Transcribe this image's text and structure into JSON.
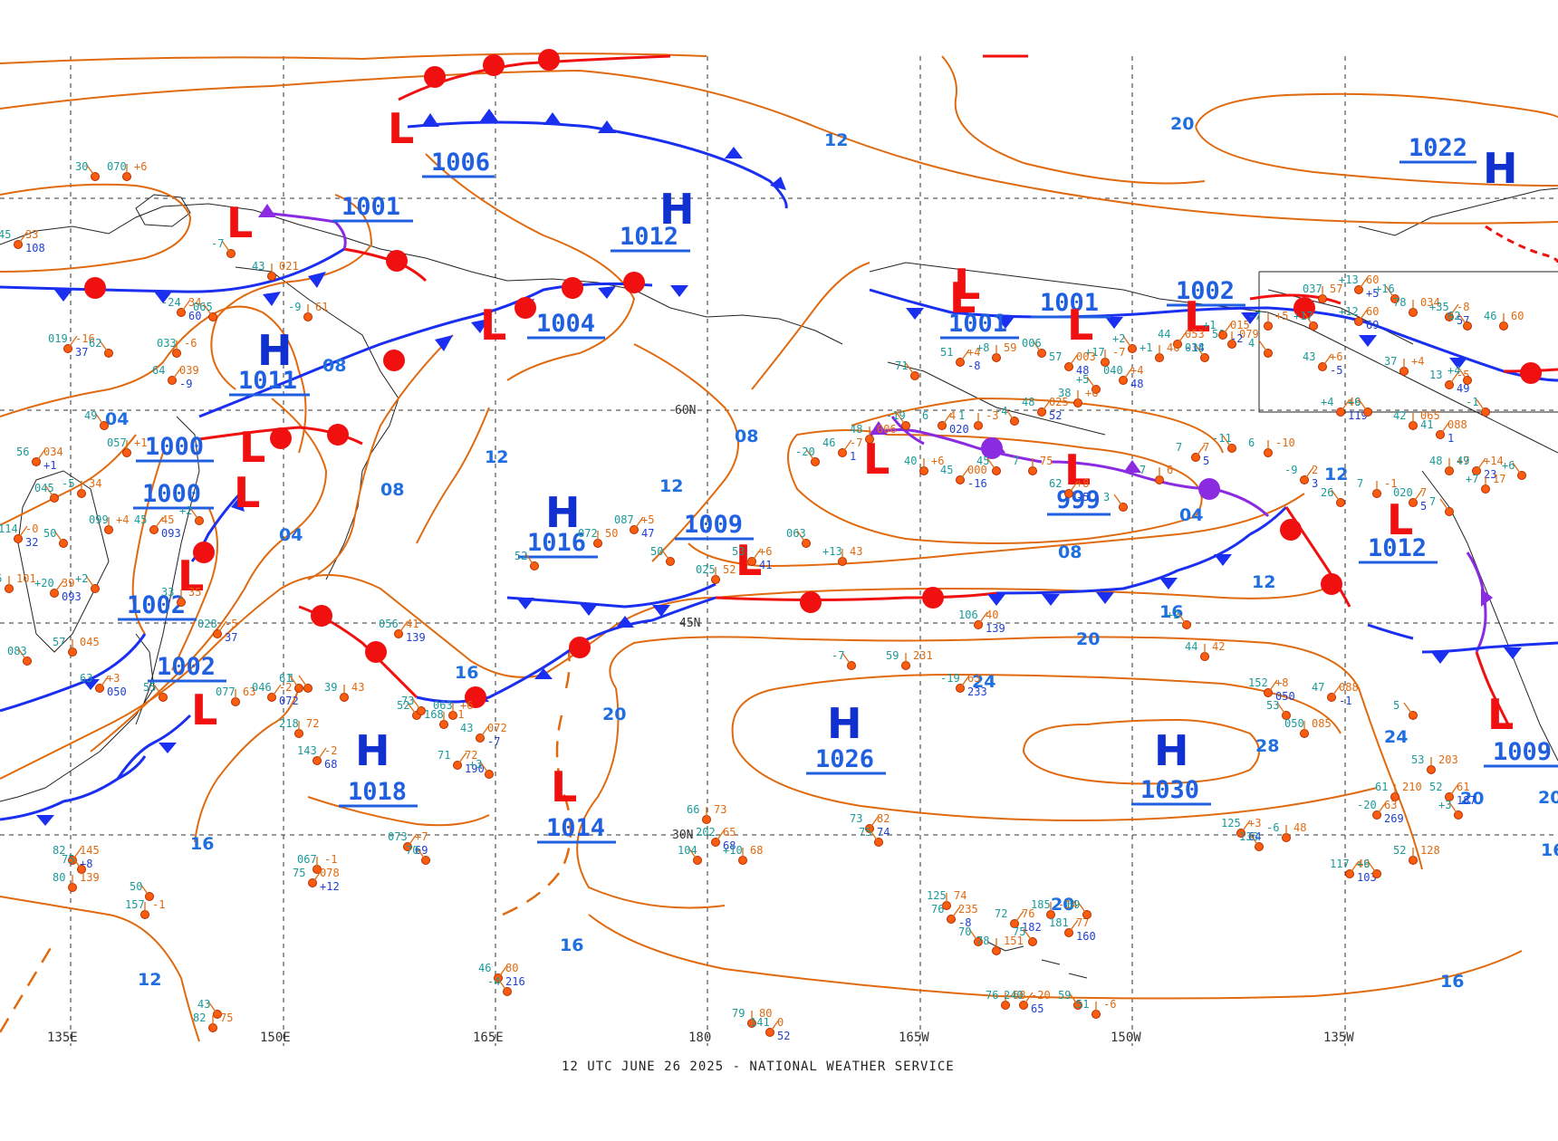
{
  "footer": "12 UTC JUNE 26 2025 - NATIONAL WEATHER SERVICE",
  "longitudes": [
    "135E",
    "150E",
    "165E",
    "180",
    "165W",
    "150W",
    "135W"
  ],
  "latitudes": [
    "60N",
    "45N",
    "30N"
  ],
  "isobar_labels": [
    "12",
    "20",
    "08",
    "04",
    "08",
    "04",
    "12",
    "12",
    "08",
    "04",
    "08",
    "12",
    "12",
    "16",
    "16",
    "20",
    "24",
    "24",
    "28",
    "20",
    "20",
    "20",
    "16",
    "16",
    "16",
    "12",
    "16",
    "20"
  ],
  "pressure_labels": [
    "1006",
    "1001",
    "1012",
    "1022",
    "1004",
    "1001",
    "1001",
    "1002",
    "1011",
    "1000",
    "1000",
    "999",
    "1016",
    "1009",
    "1002",
    "1012",
    "1002",
    "1026",
    "1018",
    "1030",
    "1014",
    "1009"
  ],
  "centers": [
    "L",
    "H",
    "L",
    "L",
    "L",
    "L",
    "L",
    "L",
    "L",
    "L",
    "L",
    "H",
    "H",
    "L",
    "L",
    "L",
    "H",
    "H",
    "H",
    "L",
    "L",
    "L",
    "L",
    "H"
  ],
  "station_values": [
    "30",
    "070",
    "+6",
    "45",
    "33",
    "108",
    "-7",
    "43",
    "021",
    "-24",
    "34",
    "60",
    "065",
    "-9",
    "61",
    "019",
    "-16",
    "37",
    "62",
    "033",
    "-6",
    "64",
    "039",
    "-9",
    "49",
    "057",
    "+1",
    "56",
    "034",
    "+1",
    "045",
    "-5",
    "34",
    "114",
    "-0",
    "32",
    "50",
    "099",
    "+4",
    "45",
    "45",
    "093",
    "+2",
    "35",
    "101",
    "+20",
    "39",
    "093",
    "+2",
    "33",
    "35",
    "028",
    "-5",
    "37",
    "083",
    "57",
    "045",
    "63",
    "+3",
    "050",
    "55",
    "077",
    "63",
    "046",
    "-2",
    "072",
    "1",
    "39",
    "43",
    "056",
    "41",
    "139",
    "52",
    "063",
    "+6",
    "43",
    "072",
    "-7",
    "52",
    "072",
    "50",
    "087",
    "+5",
    "47",
    "50",
    "025",
    "52",
    "53",
    "+6",
    "41",
    "063",
    "+13",
    "43",
    "106",
    "40",
    "139",
    "+2",
    "44",
    "42",
    "152",
    "+8",
    "050",
    "53",
    "050",
    "085",
    "47",
    "088",
    "-1",
    "5",
    "53",
    "203",
    "52",
    "61",
    "187",
    "+3",
    "61",
    "210",
    "-20",
    "63",
    "269",
    "-7",
    "59",
    "231",
    "-19",
    "63",
    "233",
    "61",
    "218",
    "72",
    "143",
    "-2",
    "68",
    "73",
    "168",
    "-1",
    "71",
    "72",
    "190",
    "+3",
    "66",
    "73",
    "202",
    "65",
    "68",
    "104",
    "+10",
    "68",
    "073",
    "+7",
    "69",
    "70",
    "067",
    "-1",
    "75",
    "078",
    "+12",
    "50",
    "157",
    "-1",
    "46",
    "80",
    "216",
    "-4",
    "79",
    "80",
    "141",
    "0",
    "52",
    "43",
    "82",
    "75",
    "82",
    "145",
    "+8",
    "75",
    "80",
    "139",
    "73",
    "82",
    "74",
    "75",
    "125",
    "74",
    "76",
    "235",
    "-8",
    "70",
    "78",
    "151",
    "72",
    "76",
    "182",
    "75",
    "185",
    "-14",
    "181",
    "77",
    "160",
    "69",
    "76",
    "68",
    "240",
    "-20",
    "65",
    "59",
    "51",
    "-6",
    "125",
    "+3",
    "64",
    "133",
    "-6",
    "48",
    "117",
    "49",
    "103",
    "+6",
    "52",
    "128",
    "+4",
    "49",
    "119",
    "+6",
    "42",
    "065",
    "41",
    "088",
    "1",
    "-1",
    "48",
    "+7",
    "49",
    "+14",
    "23",
    "+6",
    "+7",
    "17",
    "13",
    "-5",
    "49",
    "+4",
    "37",
    "+4",
    "43",
    "+6",
    "-5",
    "4",
    "50",
    "079",
    "44",
    "053",
    "-14",
    "+2",
    "+17",
    "-7",
    "57",
    "003",
    "48",
    "006",
    "+8",
    "59",
    "51",
    "+4",
    "-8",
    "71",
    "037",
    "57",
    "+13",
    "60",
    "+5",
    "+16",
    "78",
    "034",
    "+35",
    "-8",
    "57",
    "62",
    "46",
    "60",
    "+12",
    "60",
    "69",
    "+17",
    "-7",
    "+5",
    "+1",
    "015",
    "-2",
    "038",
    "+1",
    "46",
    "040",
    "+4",
    "48",
    "+5",
    "38",
    "+6",
    "48",
    "025",
    "52",
    "-4",
    "1",
    "-3",
    "6",
    "4",
    "020",
    "-19",
    "48",
    "006",
    "46",
    "-7",
    "1",
    "-20",
    "40",
    "+6",
    "45",
    "000",
    "-16",
    "45",
    "7",
    "75",
    "62",
    "+8",
    "-5",
    "3",
    "7",
    "6",
    "7",
    "7",
    "5",
    "-11",
    "6",
    "-10",
    "-9",
    "2",
    "3",
    "26",
    "7",
    "-1",
    "020",
    "7",
    "5",
    "7"
  ]
}
